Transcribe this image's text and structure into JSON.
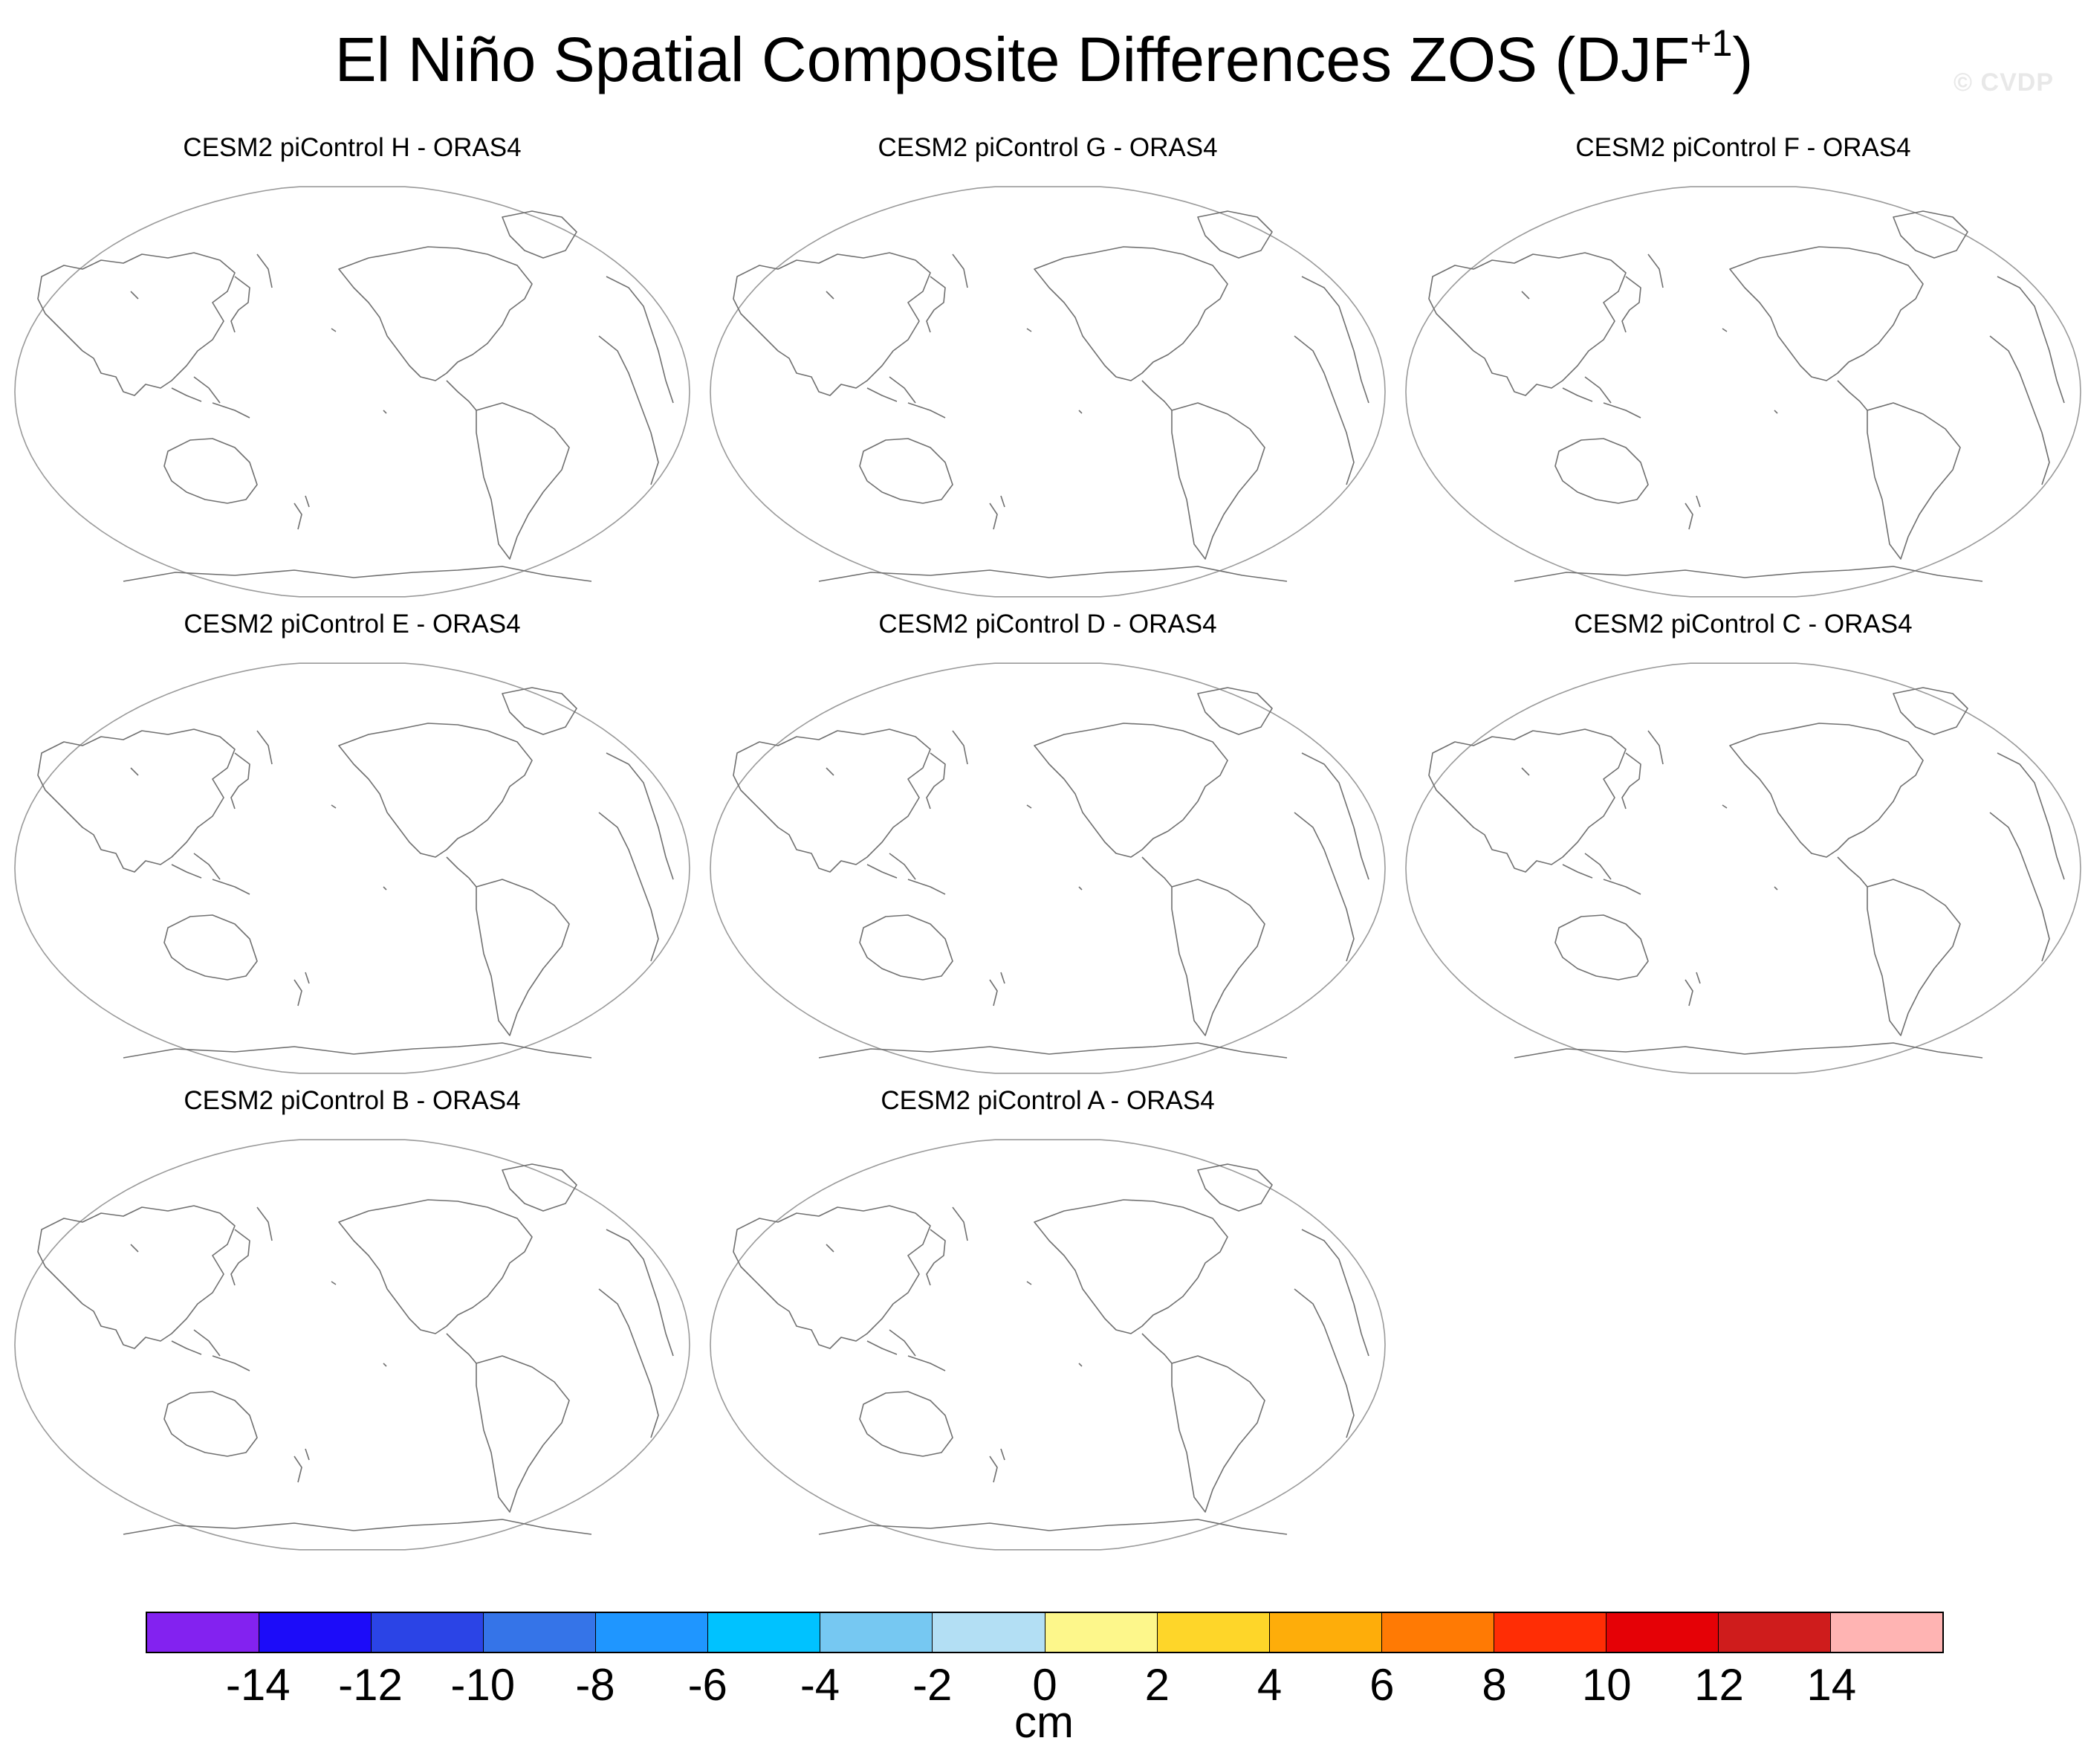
{
  "title": {
    "main": "El Niño Spatial Composite Differences ZOS (DJF",
    "superscript": "+1",
    "close": ")"
  },
  "watermark": "© CVDP",
  "panels": [
    {
      "title": "CESM2 piControl H - ORAS4"
    },
    {
      "title": "CESM2 piControl G - ORAS4"
    },
    {
      "title": "CESM2 piControl F - ORAS4"
    },
    {
      "title": "CESM2 piControl E - ORAS4"
    },
    {
      "title": "CESM2 piControl D - ORAS4"
    },
    {
      "title": "CESM2 piControl C - ORAS4"
    },
    {
      "title": "CESM2 piControl B - ORAS4"
    },
    {
      "title": "CESM2 piControl A - ORAS4"
    }
  ],
  "colorbar": {
    "colors": [
      "#8322f0",
      "#1c0cf9",
      "#2b44e6",
      "#3574e8",
      "#1f96ff",
      "#00c2ff",
      "#76c8f2",
      "#b3dff4",
      "#fdf78b",
      "#fed629",
      "#fead0a",
      "#ff7a04",
      "#ff2d05",
      "#e50106",
      "#cf1c1c",
      "#ffb4b3"
    ],
    "ticks": [
      "-14",
      "-12",
      "-10",
      "-8",
      "-6",
      "-4",
      "-2",
      "0",
      "2",
      "4",
      "6",
      "8",
      "10",
      "12",
      "14"
    ],
    "unit": "cm"
  },
  "colors": {
    "coastline": "#707070",
    "border": "#9a9a9a"
  }
}
